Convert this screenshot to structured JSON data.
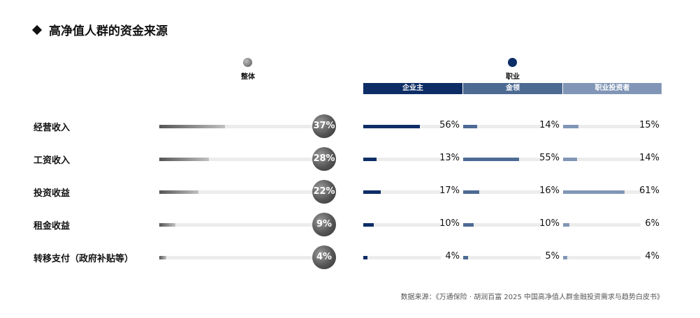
{
  "title": "高净值人群的资金来源",
  "groups": {
    "overall": {
      "label": "整体",
      "color": "#666666"
    },
    "occupation": {
      "label": "职业",
      "color": "#0d2d66"
    }
  },
  "chart_data": {
    "type": "bar",
    "categories": [
      "经营收入",
      "工资收入",
      "投资收益",
      "租金收益",
      "转移支付（政府补贴等）"
    ],
    "overall": {
      "name": "整体",
      "values": [
        37,
        28,
        22,
        9,
        4
      ],
      "labels": [
        "37%",
        "28%",
        "22%",
        "9%",
        "4%"
      ]
    },
    "series": [
      {
        "name": "企业主",
        "color": "#0d2d66",
        "values": [
          56,
          13,
          17,
          10,
          4
        ],
        "labels": [
          "56%",
          "13%",
          "17%",
          "10%",
          "4%"
        ]
      },
      {
        "name": "金领",
        "color": "#4d6a93",
        "values": [
          14,
          55,
          16,
          10,
          5
        ],
        "labels": [
          "14%",
          "55%",
          "16%",
          "10%",
          "5%"
        ]
      },
      {
        "name": "职业投资者",
        "color": "#8196b6",
        "values": [
          15,
          14,
          61,
          6,
          4
        ],
        "labels": [
          "15%",
          "14%",
          "61%",
          "6%",
          "4%"
        ]
      }
    ],
    "ylim": [
      0,
      100
    ]
  },
  "source": "数据来源：《万通保险 · 胡润百富 2025 中国高净值人群金融投资需求与趋势白皮书》"
}
